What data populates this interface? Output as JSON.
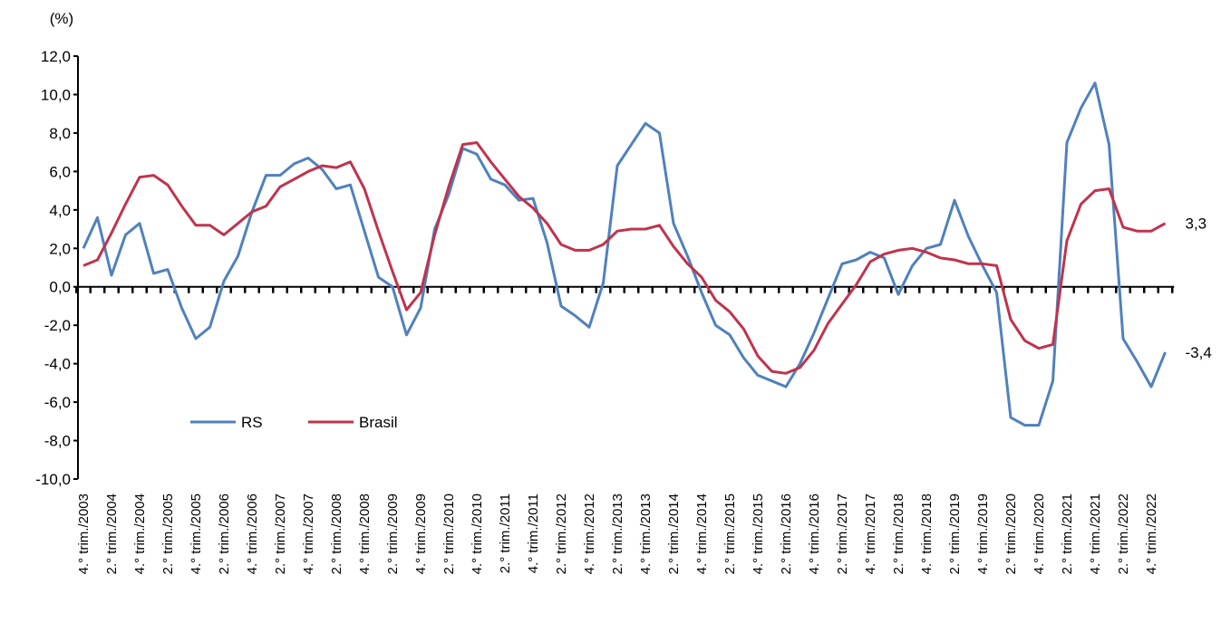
{
  "chart_data": {
    "type": "line",
    "ylabel": "(%)",
    "categories": [
      "4.° trim./2003",
      null,
      "2.° trim./2004",
      null,
      "4.° trim./2004",
      null,
      "2.° trim./2005",
      null,
      "4.° trim./2005",
      null,
      "2.° trim./2006",
      null,
      "4.° trim./2006",
      null,
      "2.° trim./2007",
      null,
      "4.° trim./2007",
      null,
      "2.° trim./2008",
      null,
      "4.° trim./2008",
      null,
      "2.° trim./2009",
      null,
      "4.° trim./2009",
      null,
      "2.° trim./2010",
      null,
      "4.° trim./2010",
      null,
      "2.° trim./2011",
      null,
      "4.° trim./2011",
      null,
      "2.° trim./2012",
      null,
      "4.° trim./2012",
      null,
      "2.° trim./2013",
      null,
      "4.° trim./2013",
      null,
      "2.° trim./2014",
      null,
      "4.° trim./2014",
      null,
      "2.° trim./2015",
      null,
      "4.° trim./2015",
      null,
      "2.° trim./2016",
      null,
      "4.° trim./2016",
      null,
      "2.° trim./2017",
      null,
      "4.° trim./2017",
      null,
      "2.° trim./2018",
      null,
      "4.° trim./2018",
      null,
      "2.° trim./2019",
      null,
      "4.° trim./2019",
      null,
      "2.° trim./2020",
      null,
      "4.° trim./2020",
      null,
      "2.° trim./2021",
      null,
      "4.° trim./2021",
      null,
      "2.° trim./2022",
      null,
      "4.° trim./2022",
      null
    ],
    "series": [
      {
        "name": "RS",
        "color": "#4f81bd",
        "values": [
          2.0,
          3.6,
          0.6,
          2.7,
          3.3,
          0.7,
          0.9,
          -1.1,
          -2.7,
          -2.1,
          0.3,
          1.6,
          3.9,
          5.8,
          5.8,
          6.4,
          6.7,
          6.1,
          5.1,
          5.3,
          2.9,
          0.5,
          0.0,
          -2.5,
          -1.1,
          3.0,
          4.8,
          7.2,
          6.9,
          5.6,
          5.3,
          4.5,
          4.6,
          2.3,
          -1.0,
          -1.5,
          -2.1,
          0.2,
          6.3,
          7.4,
          8.5,
          8.0,
          3.3,
          1.6,
          -0.3,
          -2.0,
          -2.5,
          -3.7,
          -4.6,
          -4.9,
          -5.2,
          -4.0,
          -2.4,
          -0.6,
          1.2,
          1.4,
          1.8,
          1.5,
          -0.4,
          1.1,
          2.0,
          2.2,
          4.5,
          2.6,
          1.1,
          -0.3,
          -6.8,
          -7.2,
          -7.2,
          -4.9,
          7.5,
          9.3,
          10.6,
          7.4,
          -2.7,
          -3.9,
          -5.2,
          -3.4
        ],
        "value_labels": [
          null,
          null,
          null,
          null,
          null,
          null,
          null,
          null,
          null,
          null,
          null,
          null,
          null,
          null,
          null,
          null,
          null,
          null,
          null,
          null,
          null,
          null,
          null,
          null,
          null,
          null,
          null,
          null,
          null,
          null,
          null,
          null,
          null,
          null,
          null,
          null,
          null,
          null,
          null,
          null,
          null,
          null,
          null,
          null,
          null,
          null,
          null,
          null,
          null,
          null,
          null,
          null,
          null,
          null,
          null,
          null,
          null,
          null,
          null,
          null,
          null,
          null,
          null,
          null,
          null,
          null,
          null,
          null,
          null,
          null,
          null,
          null,
          null,
          null,
          null,
          null,
          null,
          "-3,4"
        ]
      },
      {
        "name": "Brasil",
        "color": "#c0334d",
        "values": [
          1.1,
          1.4,
          2.8,
          4.3,
          5.7,
          5.8,
          5.3,
          4.2,
          3.2,
          3.2,
          2.7,
          3.3,
          3.9,
          4.2,
          5.2,
          5.6,
          6.0,
          6.3,
          6.2,
          6.5,
          5.1,
          2.9,
          0.8,
          -1.2,
          -0.3,
          2.7,
          5.2,
          7.4,
          7.5,
          6.5,
          5.6,
          4.7,
          4.1,
          3.3,
          2.2,
          1.9,
          1.9,
          2.2,
          2.9,
          3.0,
          3.0,
          3.2,
          2.1,
          1.2,
          0.5,
          -0.7,
          -1.3,
          -2.2,
          -3.6,
          -4.4,
          -4.5,
          -4.2,
          -3.3,
          -1.9,
          -0.9,
          0.1,
          1.3,
          1.7,
          1.9,
          2.0,
          1.8,
          1.5,
          1.4,
          1.2,
          1.2,
          1.1,
          -1.7,
          -2.8,
          -3.2,
          -3.0,
          2.4,
          4.3,
          5.0,
          5.1,
          3.1,
          2.9,
          2.9,
          3.3
        ],
        "value_labels": [
          null,
          null,
          null,
          null,
          null,
          null,
          null,
          null,
          null,
          null,
          null,
          null,
          null,
          null,
          null,
          null,
          null,
          null,
          null,
          null,
          null,
          null,
          null,
          null,
          null,
          null,
          null,
          null,
          null,
          null,
          null,
          null,
          null,
          null,
          null,
          null,
          null,
          null,
          null,
          null,
          null,
          null,
          null,
          null,
          null,
          null,
          null,
          null,
          null,
          null,
          null,
          null,
          null,
          null,
          null,
          null,
          null,
          null,
          null,
          null,
          null,
          null,
          null,
          null,
          null,
          null,
          null,
          null,
          null,
          null,
          null,
          null,
          null,
          null,
          null,
          null,
          null,
          "3,3"
        ]
      }
    ],
    "ylim": [
      -10,
      12
    ],
    "yticks": [
      {
        "value": -10,
        "label": "-10,0"
      },
      {
        "value": -8,
        "label": "-8,0"
      },
      {
        "value": -6,
        "label": "-6,0"
      },
      {
        "value": -4,
        "label": "-4,0"
      },
      {
        "value": -2,
        "label": "-2,0"
      },
      {
        "value": 0,
        "label": "0,0"
      },
      {
        "value": 2,
        "label": "2,0"
      },
      {
        "value": 4,
        "label": "4,0"
      },
      {
        "value": 6,
        "label": "6,0"
      },
      {
        "value": 8,
        "label": "8,0"
      },
      {
        "value": 10,
        "label": "10,0"
      },
      {
        "value": 12,
        "label": "12,0"
      }
    ],
    "grid": false,
    "legend": "lower-left"
  }
}
